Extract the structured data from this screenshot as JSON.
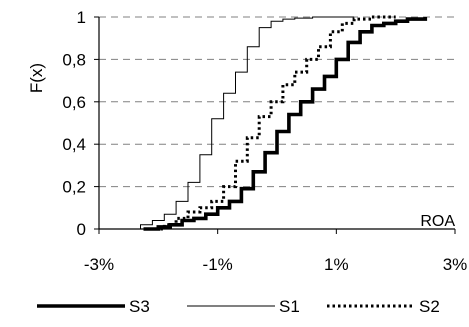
{
  "chart_data": {
    "type": "line",
    "title": "",
    "xlabel": "",
    "ylabel": "F(x)",
    "annotation": "ROA",
    "xlim": [
      -3,
      3
    ],
    "ylim": [
      0,
      1
    ],
    "x_ticks": [
      -3,
      -1,
      1,
      3
    ],
    "x_tick_labels": [
      "-3%",
      "-1%",
      "1%",
      "3%"
    ],
    "y_ticks": [
      0,
      0.2,
      0.4,
      0.6,
      0.8,
      1
    ],
    "y_tick_labels": [
      "0",
      "0,2",
      "0,4",
      "0,6",
      "0,8",
      "1"
    ],
    "grid": "horizontal-dashed",
    "legend_position": "bottom",
    "series": [
      {
        "name": "S3",
        "color": "#000000",
        "line_style": "solid-thick",
        "x": [
          -2.25,
          -2.0,
          -1.8,
          -1.6,
          -1.4,
          -1.2,
          -1.0,
          -0.8,
          -0.6,
          -0.4,
          -0.2,
          0.0,
          0.2,
          0.4,
          0.6,
          0.8,
          1.0,
          1.2,
          1.4,
          1.6,
          1.8,
          2.0,
          2.2,
          2.5
        ],
        "y": [
          0.0,
          0.01,
          0.02,
          0.04,
          0.05,
          0.07,
          0.1,
          0.13,
          0.19,
          0.27,
          0.36,
          0.46,
          0.54,
          0.6,
          0.66,
          0.72,
          0.8,
          0.88,
          0.93,
          0.96,
          0.97,
          0.98,
          0.99,
          1.0
        ]
      },
      {
        "name": "S1",
        "color": "#000000",
        "line_style": "solid-thin",
        "x": [
          -2.5,
          -2.3,
          -2.1,
          -1.9,
          -1.7,
          -1.5,
          -1.3,
          -1.1,
          -0.9,
          -0.7,
          -0.5,
          -0.3,
          -0.1,
          0.1,
          0.3,
          0.6,
          1.0,
          1.3
        ],
        "y": [
          0.0,
          0.02,
          0.04,
          0.07,
          0.13,
          0.22,
          0.35,
          0.52,
          0.64,
          0.74,
          0.86,
          0.95,
          0.98,
          0.99,
          0.995,
          1.0,
          1.0,
          1.0
        ]
      },
      {
        "name": "S2",
        "color": "#000000",
        "line_style": "dotted",
        "x": [
          -2.15,
          -1.9,
          -1.7,
          -1.5,
          -1.3,
          -1.1,
          -0.9,
          -0.7,
          -0.5,
          -0.3,
          -0.1,
          0.1,
          0.3,
          0.5,
          0.7,
          0.9,
          1.1,
          1.3,
          1.6,
          2.0
        ],
        "y": [
          0.0,
          0.02,
          0.05,
          0.08,
          0.1,
          0.13,
          0.2,
          0.32,
          0.43,
          0.53,
          0.6,
          0.68,
          0.74,
          0.8,
          0.86,
          0.93,
          0.97,
          0.99,
          1.0,
          1.0
        ]
      }
    ]
  }
}
